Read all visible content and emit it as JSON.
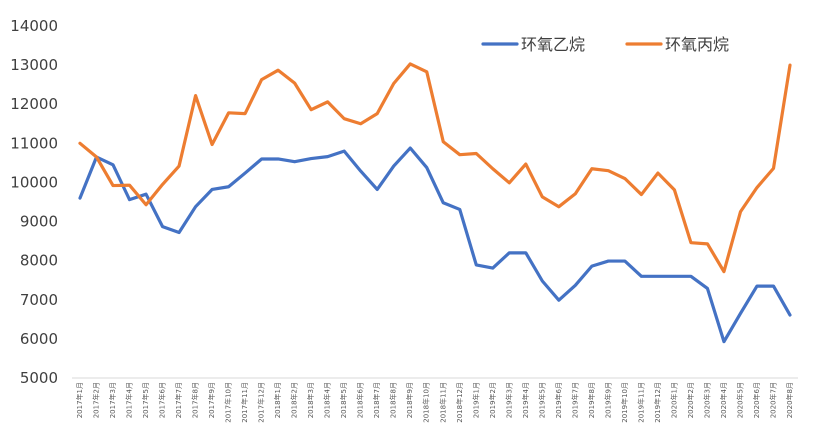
{
  "chart_data": {
    "type": "line",
    "title": "",
    "xlabel": "",
    "ylabel": "",
    "ylim": [
      5000,
      14000
    ],
    "yticks": [
      5000,
      6000,
      7000,
      8000,
      9000,
      10000,
      11000,
      12000,
      13000,
      14000
    ],
    "grid": false,
    "legend_position": "top-right",
    "x": [
      "2017年1月",
      "2017年2月",
      "2017年3月",
      "2017年4月",
      "2017年5月",
      "2017年6月",
      "2017年7月",
      "2017年8月",
      "2017年9月",
      "2017年10月",
      "2017年11月",
      "2017年12月",
      "2018年1月",
      "2018年2月",
      "2018年3月",
      "2018年4月",
      "2018年5月",
      "2018年6月",
      "2018年7月",
      "2018年8月",
      "2018年9月",
      "2018年10月",
      "2018年11月",
      "2018年12月",
      "2019年1月",
      "2019年2月",
      "2019年3月",
      "2019年4月",
      "2019年5月",
      "2019年6月",
      "2019年7月",
      "2019年8月",
      "2019年9月",
      "2019年10月",
      "2019年11月",
      "2019年12月",
      "2020年1月",
      "2020年2月",
      "2020年3月",
      "2020年4月",
      "2020年5月",
      "2020年6月",
      "2020年7月",
      "2020年8月"
    ],
    "series": [
      {
        "name": "环氧乙烷",
        "color": "#4472C4",
        "values": [
          9600,
          10650,
          10450,
          9560,
          9700,
          8870,
          8720,
          9380,
          9820,
          9890,
          10240,
          10600,
          10600,
          10530,
          10610,
          10660,
          10800,
          10290,
          9820,
          10420,
          10880,
          10380,
          9480,
          9310,
          7890,
          7810,
          8200,
          8200,
          7480,
          6990,
          7370,
          7860,
          7990,
          7990,
          7600,
          7600,
          7600,
          7600,
          7290,
          5930,
          6650,
          7350,
          7350,
          6610
        ]
      },
      {
        "name": "环氧丙烷",
        "color": "#ED7D31",
        "values": [
          11000,
          10650,
          9920,
          9930,
          9430,
          9950,
          10420,
          12220,
          10970,
          11780,
          11760,
          12630,
          12870,
          12540,
          11860,
          12060,
          11630,
          11500,
          11760,
          12530,
          13030,
          12830,
          11040,
          10710,
          10740,
          10350,
          9990,
          10470,
          9630,
          9380,
          9710,
          10350,
          10300,
          10100,
          9690,
          10240,
          9810,
          8460,
          8430,
          7720,
          9250,
          9870,
          10360,
          13000
        ]
      }
    ]
  }
}
